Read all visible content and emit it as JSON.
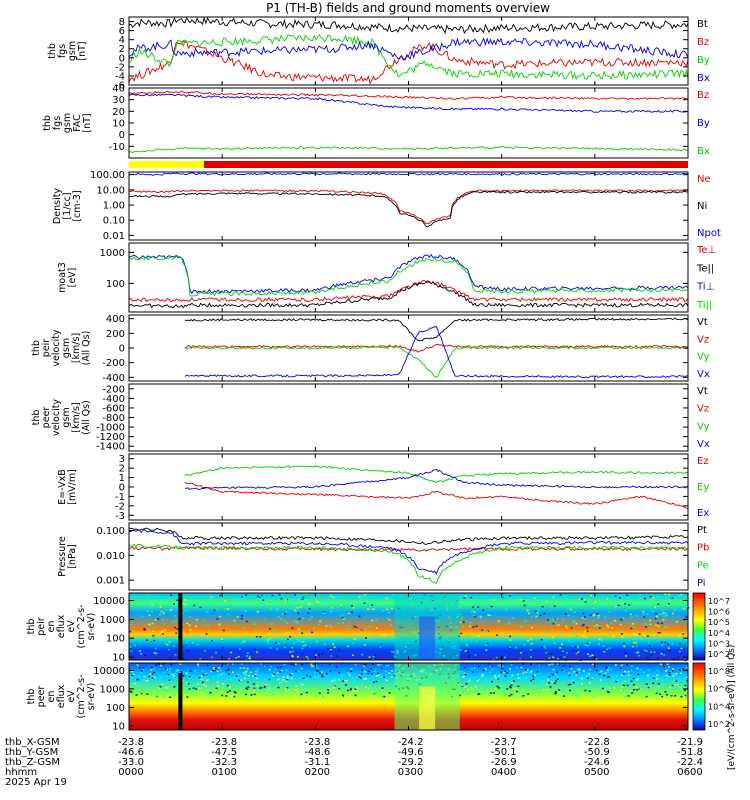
{
  "title": "P1 (TH-B) fields and ground moments overview",
  "colors": {
    "black": "#000000",
    "red": "#e00000",
    "green": "#00d000",
    "blue": "#0000e0",
    "yellow": "#ffff00",
    "bar_red": "#e00000"
  },
  "time_axis": {
    "range": [
      "0000",
      "0600"
    ],
    "ticks": [
      "0000",
      "0100",
      "0200",
      "0300",
      "0400",
      "0500",
      "0600"
    ]
  },
  "footer": {
    "rows": [
      {
        "label": "thb_X-GSM",
        "values": [
          "-23.8",
          "-23.8",
          "-23.8",
          "-24.2",
          "-23.7",
          "-22.8",
          "-21.9"
        ]
      },
      {
        "label": "thb_Y-GSM",
        "values": [
          "-46.6",
          "-47.5",
          "-48.6",
          "-49.6",
          "-50.1",
          "-50.9",
          "-51.8"
        ]
      },
      {
        "label": "thb_Z-GSM",
        "values": [
          "-33.0",
          "-32.3",
          "-31.1",
          "-29.2",
          "-26.9",
          "-24.6",
          "-22.4"
        ]
      },
      {
        "label": "hhmm",
        "values": [
          "0000",
          "0100",
          "0200",
          "0300",
          "0400",
          "0500",
          "0600"
        ]
      }
    ],
    "date": "2025 Apr 19"
  },
  "colorbar": {
    "label": "[eV/(cm^2-s-sr-eV)] (All Qs)"
  },
  "chart_data": [
    {
      "id": "fgs",
      "type": "line",
      "ylabel": [
        "thb",
        "fgs",
        "gsm",
        "[nT]"
      ],
      "ylim": [
        -6,
        9
      ],
      "yticks": [
        "8",
        "6",
        "4",
        "2",
        "0",
        "-2",
        "-4",
        "-6"
      ],
      "ytick_values": [
        8,
        6,
        4,
        2,
        0,
        -2,
        -4,
        -6
      ],
      "legend": [
        "Bt",
        "Bz",
        "By",
        "Bx"
      ],
      "series": [
        {
          "name": "Bt",
          "color": "black",
          "x": [
            0,
            0.1,
            0.45,
            0.5,
            1.5,
            2.2,
            2.8,
            3.2,
            3.5,
            4.0,
            5.0,
            6.0
          ],
          "values": [
            7.2,
            7.8,
            7.6,
            8.4,
            7.5,
            7.3,
            6.6,
            6.4,
            6.2,
            6.6,
            6.9,
            7.4
          ]
        },
        {
          "name": "Bz",
          "color": "red",
          "x": [
            0,
            0.1,
            0.45,
            0.5,
            1.5,
            2.2,
            2.6,
            2.9,
            3.2,
            3.5,
            4.0,
            5.0,
            6.0
          ],
          "values": [
            -4.5,
            -4,
            -1,
            4,
            -4,
            -4.5,
            -4.8,
            0,
            3,
            -0.5,
            -1.5,
            -1,
            -1
          ]
        },
        {
          "name": "By",
          "color": "green",
          "x": [
            0,
            0.1,
            0.45,
            0.5,
            1.5,
            2.2,
            2.6,
            2.9,
            3.2,
            3.5,
            4.0,
            5.0,
            6.0
          ],
          "values": [
            -1,
            1.5,
            -1.5,
            3,
            4,
            4.5,
            3.5,
            -4,
            -1,
            -3.5,
            -3.5,
            -4,
            -3.5
          ]
        },
        {
          "name": "Bx",
          "color": "blue",
          "x": [
            0,
            0.1,
            0.45,
            0.5,
            1.5,
            2.2,
            2.6,
            2.9,
            3.2,
            3.5,
            4.0,
            5.0,
            6.0
          ],
          "values": [
            1,
            2,
            3,
            1,
            1.5,
            2,
            3,
            0,
            1.5,
            3.5,
            3.5,
            3,
            0.5
          ]
        }
      ]
    },
    {
      "id": "fgs_gse",
      "type": "line",
      "ylabel": [
        "thb",
        "fgs",
        "gsm",
        "FAC",
        "[nT]"
      ],
      "ylim": [
        -20,
        40
      ],
      "yticks": [
        "40",
        "30",
        "20",
        "10",
        "0",
        "-10"
      ],
      "ytick_values": [
        40,
        30,
        20,
        10,
        0,
        -10
      ],
      "legend": [
        "Bz",
        "By",
        "Bx"
      ],
      "series": [
        {
          "name": "Bz",
          "color": "red",
          "x": [
            0,
            0.5,
            1.0,
            2.0,
            3.0,
            3.5,
            4.0,
            5.0,
            6.0
          ],
          "values": [
            35,
            37,
            35,
            34,
            32,
            31,
            32,
            31,
            31
          ]
        },
        {
          "name": "By",
          "color": "blue",
          "x": [
            0,
            0.5,
            1.0,
            2.0,
            2.8,
            3.5,
            4.0,
            5.0,
            6.0
          ],
          "values": [
            34,
            34,
            32,
            31,
            24,
            22,
            22,
            20,
            20
          ]
        },
        {
          "name": "Bx",
          "color": "green",
          "x": [
            0,
            0.5,
            1.0,
            2.0,
            3.0,
            4.0,
            5.0,
            6.0
          ],
          "values": [
            -15,
            -12,
            -12,
            -11,
            -12,
            -11,
            -12,
            -13
          ]
        }
      ]
    },
    {
      "id": "density",
      "type": "line",
      "yscale": "log",
      "ylabel": [
        "Density",
        "[1/cc]",
        "[cm-3]"
      ],
      "ylim": [
        0.005,
        150
      ],
      "yticks": [
        "100.00",
        "10.00",
        "1.00",
        "0.10",
        "0.01"
      ],
      "ytick_values": [
        100,
        10,
        1,
        0.1,
        0.01
      ],
      "legend": [
        "Ne",
        "Ni",
        "Npot"
      ],
      "series": [
        {
          "name": "Ne",
          "color": "red",
          "x": [
            0,
            0.4,
            0.55,
            1.0,
            2.0,
            2.7,
            2.9,
            3.2,
            3.45,
            3.7,
            4.0,
            5.0,
            6.0
          ],
          "values": [
            8,
            7,
            9,
            9,
            8.5,
            6,
            0.4,
            0.05,
            0.2,
            9,
            9,
            9,
            9
          ]
        },
        {
          "name": "Ni",
          "color": "black",
          "x": [
            0,
            0.4,
            0.55,
            1.0,
            2.0,
            2.7,
            2.9,
            3.2,
            3.45,
            3.7,
            4.0,
            5.0,
            6.0
          ],
          "values": [
            4,
            3.5,
            5,
            6,
            5.5,
            4,
            0.3,
            0.03,
            0.15,
            7,
            7,
            7,
            7
          ]
        },
        {
          "name": "Npot",
          "color": "blue",
          "x": [
            0,
            0.3,
            0.5,
            1.0,
            2.0,
            3.0,
            4.0,
            5.0,
            6.0
          ],
          "values": [
            110,
            100,
            120,
            110,
            115,
            110,
            110,
            110,
            110
          ]
        }
      ]
    },
    {
      "id": "temperature",
      "type": "line",
      "yscale": "log",
      "ylabel": [
        "moat3",
        "[eV]"
      ],
      "ylim": [
        12,
        2000
      ],
      "yticks": [
        "1000",
        "100"
      ],
      "ytick_values": [
        1000,
        100
      ],
      "legend": [
        "Te⊥",
        "Te||",
        "Ti⊥",
        "Ti||"
      ],
      "series": [
        {
          "name": "Te⊥",
          "color": "red",
          "x": [
            0,
            0.55,
            0.65,
            2.0,
            2.8,
            3.2,
            3.5,
            3.7,
            4.0,
            5.0,
            6.0
          ],
          "values": [
            30,
            28,
            30,
            30,
            40,
            120,
            60,
            30,
            30,
            30,
            30
          ]
        },
        {
          "name": "Te||",
          "color": "black",
          "x": [
            0,
            0.55,
            0.65,
            2.0,
            2.8,
            3.2,
            3.5,
            3.7,
            4.0,
            5.0,
            6.0
          ],
          "values": [
            20,
            18,
            20,
            20,
            35,
            110,
            50,
            20,
            20,
            20,
            20
          ]
        },
        {
          "name": "Ti⊥",
          "color": "blue",
          "x": [
            0,
            0.5,
            0.55,
            0.65,
            2.0,
            2.8,
            3.2,
            3.5,
            3.7,
            4.0,
            5.0,
            6.0
          ],
          "values": [
            700,
            700,
            800,
            55,
            60,
            150,
            800,
            600,
            80,
            65,
            70,
            75
          ]
        },
        {
          "name": "Ti||",
          "color": "green",
          "x": [
            0,
            0.5,
            0.55,
            0.65,
            2.0,
            2.8,
            3.2,
            3.5,
            3.7,
            4.0,
            5.0,
            6.0
          ],
          "values": [
            650,
            650,
            700,
            45,
            50,
            120,
            600,
            500,
            60,
            55,
            60,
            60
          ]
        }
      ]
    },
    {
      "id": "peir_velocity",
      "type": "line",
      "ylabel": [
        "thb",
        "peir",
        "velocity",
        "gsm",
        "[km/s]",
        "(All Qs)"
      ],
      "ylim": [
        -450,
        450
      ],
      "yticks": [
        "400",
        "200",
        "0",
        "-200",
        "-400"
      ],
      "ytick_values": [
        400,
        200,
        0,
        -200,
        -400
      ],
      "legend": [
        "Vt",
        "Vz",
        "Vy",
        "Vx"
      ],
      "series": [
        {
          "name": "Vt",
          "color": "black",
          "x": [
            0.6,
            1.0,
            2.0,
            2.9,
            3.1,
            3.3,
            3.5,
            4.0,
            5.0,
            6.0
          ],
          "values": [
            380,
            385,
            385,
            380,
            100,
            150,
            380,
            385,
            390,
            395
          ]
        },
        {
          "name": "Vz",
          "color": "red",
          "x": [
            0.6,
            1.0,
            2.0,
            2.9,
            3.1,
            3.3,
            3.5,
            4.0,
            5.0,
            6.0
          ],
          "values": [
            20,
            20,
            20,
            25,
            -50,
            40,
            20,
            20,
            20,
            20
          ]
        },
        {
          "name": "Vy",
          "color": "green",
          "x": [
            0.6,
            1.0,
            2.0,
            2.9,
            3.1,
            3.3,
            3.5,
            4.0,
            5.0,
            6.0
          ],
          "values": [
            0,
            0,
            0,
            10,
            -150,
            -400,
            0,
            0,
            0,
            0
          ]
        },
        {
          "name": "Vx",
          "color": "blue",
          "x": [
            0.6,
            1.0,
            2.0,
            2.9,
            3.1,
            3.3,
            3.5,
            4.0,
            5.0,
            6.0
          ],
          "values": [
            -380,
            -380,
            -380,
            -370,
            200,
            300,
            -380,
            -385,
            -390,
            -390
          ]
        }
      ]
    },
    {
      "id": "peer_velocity",
      "type": "line",
      "ylabel": [
        "thb",
        "peer",
        "velocity",
        "gsm",
        "[km/s]",
        "(All Qs)"
      ],
      "ylim": [
        -1500,
        -100
      ],
      "yticks": [
        "-200",
        "-400",
        "-600",
        "-800",
        "-1000",
        "-1200",
        "-1400"
      ],
      "ytick_values": [
        -200,
        -400,
        -600,
        -800,
        -1000,
        -1200,
        -1400
      ],
      "legend": [
        "Vt",
        "Vz",
        "Vy",
        "Vx"
      ],
      "series": []
    },
    {
      "id": "efield",
      "type": "line",
      "ylabel": [
        "E=-VxB",
        "[mV/m]"
      ],
      "ylim": [
        -3.5,
        3.5
      ],
      "yticks": [
        "3",
        "2",
        "1",
        "0",
        "-1",
        "-2",
        "-3"
      ],
      "ytick_values": [
        3,
        2,
        1,
        0,
        -1,
        -2,
        -3
      ],
      "legend": [
        "Ez",
        "Ey",
        "Ex"
      ],
      "series": [
        {
          "name": "Ez",
          "color": "red",
          "x": [
            0.6,
            1.0,
            2.0,
            2.5,
            3.0,
            3.3,
            3.6,
            4.0,
            4.5,
            5.0,
            5.5,
            6.0
          ],
          "values": [
            0.5,
            -0.5,
            -0.8,
            -1.0,
            -1.2,
            -0.5,
            -1.2,
            -1.0,
            -1.5,
            -1.8,
            -1.0,
            -2.2
          ]
        },
        {
          "name": "Ey",
          "color": "green",
          "x": [
            0.6,
            1.0,
            2.0,
            2.5,
            3.0,
            3.3,
            3.6,
            4.0,
            4.5,
            5.0,
            5.5,
            6.0
          ],
          "values": [
            1.2,
            2.0,
            2.2,
            1.8,
            1.5,
            0.5,
            1.2,
            1.4,
            1.5,
            1.6,
            1.5,
            1.5
          ]
        },
        {
          "name": "Ex",
          "color": "blue",
          "x": [
            0.6,
            1.0,
            2.0,
            2.5,
            3.0,
            3.3,
            3.6,
            4.0,
            4.5,
            5.0,
            5.5,
            6.0
          ],
          "values": [
            -0.2,
            -0.1,
            0,
            0.5,
            1.0,
            1.8,
            0.5,
            0.2,
            0.1,
            0,
            0,
            0
          ]
        }
      ]
    },
    {
      "id": "pressure",
      "type": "line",
      "yscale": "log",
      "ylabel": [
        "Pressure",
        "[nPa]"
      ],
      "ylim": [
        0.0004,
        0.2
      ],
      "yticks": [
        "0.100",
        "0.010",
        "0.001"
      ],
      "ytick_values": [
        0.1,
        0.01,
        0.001
      ],
      "legend": [
        "Pt",
        "Pb",
        "Pe",
        "Pi"
      ],
      "series": [
        {
          "name": "Pt",
          "color": "black",
          "x": [
            0,
            0.45,
            0.55,
            1.0,
            2.0,
            2.8,
            3.2,
            3.5,
            4.0,
            5.0,
            6.0
          ],
          "values": [
            0.12,
            0.1,
            0.05,
            0.05,
            0.05,
            0.04,
            0.03,
            0.04,
            0.05,
            0.05,
            0.055
          ]
        },
        {
          "name": "Pb",
          "color": "red",
          "x": [
            0,
            0.45,
            0.55,
            1.0,
            2.0,
            2.8,
            3.2,
            3.5,
            4.0,
            5.0,
            6.0
          ],
          "values": [
            0.02,
            0.018,
            0.02,
            0.019,
            0.018,
            0.017,
            0.016,
            0.018,
            0.018,
            0.018,
            0.018
          ]
        },
        {
          "name": "Pe",
          "color": "green",
          "x": [
            0,
            0.45,
            0.55,
            1.0,
            2.0,
            2.8,
            3.1,
            3.3,
            3.5,
            4.0,
            5.0,
            6.0
          ],
          "values": [
            0.025,
            0.022,
            0.02,
            0.02,
            0.02,
            0.015,
            0.0015,
            0.0008,
            0.005,
            0.02,
            0.02,
            0.02
          ]
        },
        {
          "name": "Pi",
          "color": "blue",
          "x": [
            0,
            0.45,
            0.55,
            1.0,
            2.0,
            2.8,
            3.1,
            3.3,
            3.5,
            4.0,
            5.0,
            6.0
          ],
          "values": [
            0.1,
            0.08,
            0.03,
            0.03,
            0.03,
            0.02,
            0.003,
            0.002,
            0.01,
            0.03,
            0.032,
            0.032
          ]
        }
      ]
    },
    {
      "id": "peir_spec",
      "type": "heatmap",
      "yscale": "log",
      "ylabel": [
        "thb",
        "peir",
        "en",
        "eflux",
        "eV",
        "(cm^2-s-",
        "sr-eV)"
      ],
      "ylim": [
        7,
        25000
      ],
      "yticks": [
        "10000",
        "1000",
        "100",
        "10"
      ],
      "ytick_values": [
        10000,
        1000,
        100,
        10
      ],
      "colorbar_ticks": [
        "10^7",
        "10^6",
        "10^5",
        "10^4",
        "10^3",
        "10^2"
      ]
    },
    {
      "id": "peer_spec",
      "type": "heatmap",
      "yscale": "log",
      "ylabel": [
        "thb",
        "peer",
        "en",
        "eflux",
        "eV",
        "(cm^2-s-",
        "sr-eV)"
      ],
      "ylim": [
        6,
        25000
      ],
      "yticks": [
        "10000",
        "1000",
        "100",
        "10"
      ],
      "ytick_values": [
        10000,
        1000,
        100,
        10
      ],
      "colorbar_ticks": [
        "10^8",
        "10^6",
        "10^4",
        "10^2"
      ]
    }
  ]
}
